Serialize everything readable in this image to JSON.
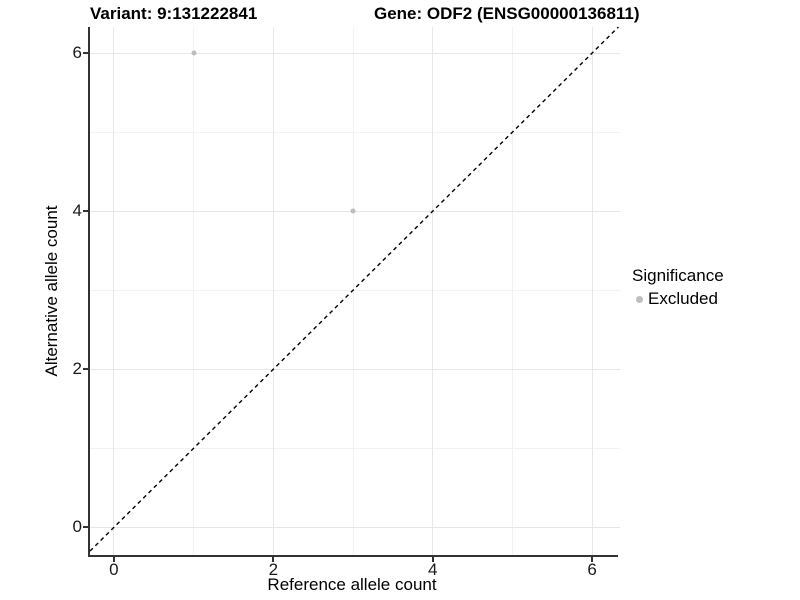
{
  "titles": {
    "left": "Variant: 9:131222841",
    "right": "Gene: ODF2 (ENSG00000136811)"
  },
  "chart_data": {
    "type": "scatter",
    "title_left": "Variant: 9:131222841",
    "title_right": "Gene: ODF2 (ENSG00000136811)",
    "xlabel": "Reference allele count",
    "ylabel": "Alternative allele count",
    "xlim": [
      -0.3,
      6.35
    ],
    "ylim": [
      -0.35,
      6.33
    ],
    "x_ticks": [
      0,
      2,
      4,
      6
    ],
    "y_ticks": [
      0,
      2,
      4,
      6
    ],
    "x_minor_ticks": [
      1,
      3,
      5
    ],
    "y_minor_ticks": [
      1,
      3,
      5
    ],
    "grid": "on",
    "identity_line": {
      "slope": 1,
      "intercept": 0,
      "style": "dashed",
      "color": "#000000"
    },
    "series": [
      {
        "name": "Excluded",
        "color": "#bdbdbd",
        "points": [
          {
            "x": 1,
            "y": 6
          },
          {
            "x": 3,
            "y": 4
          }
        ]
      }
    ],
    "legend": {
      "title": "Significance",
      "position": "right",
      "items": [
        {
          "label": "Excluded",
          "color": "#bdbdbd"
        }
      ]
    }
  }
}
